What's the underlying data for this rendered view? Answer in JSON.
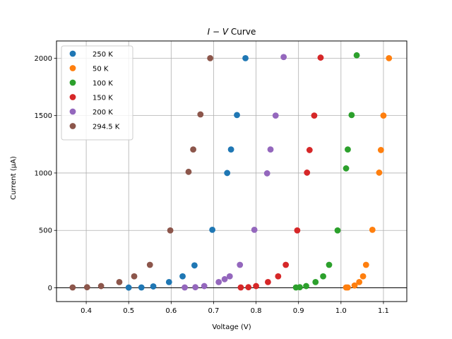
{
  "chart_data": {
    "type": "scatter",
    "title_prefix": "I",
    "title_sep": " − ",
    "title_mid": "V",
    "title_suffix": " Curve",
    "xlabel": "Voltage (V)",
    "ylabel": "Current (μA)",
    "xlim": [
      0.33,
      1.155
    ],
    "ylim": [
      -120,
      2150
    ],
    "xticks": [
      0.4,
      0.5,
      0.6,
      0.7,
      0.8,
      0.9,
      1.0,
      1.1
    ],
    "xtick_labels": [
      "0.4",
      "0.5",
      "0.6",
      "0.7",
      "0.8",
      "0.9",
      "1.0",
      "1.1"
    ],
    "yticks": [
      0,
      500,
      1000,
      1500,
      2000
    ],
    "ytick_labels": [
      "0",
      "500",
      "1000",
      "1500",
      "2000"
    ],
    "grid": true,
    "zero_line": true,
    "legend_position": "top-left",
    "series": [
      {
        "name": "250 K",
        "color": "#1f77b4",
        "x": [
          0.5,
          0.53,
          0.558,
          0.595,
          0.627,
          0.655,
          0.697,
          0.732,
          0.741,
          0.755,
          0.775
        ],
        "y": [
          2,
          3,
          12,
          50,
          100,
          195,
          505,
          1000,
          1205,
          1505,
          2000
        ]
      },
      {
        "name": "50 K",
        "color": "#ff7f0e",
        "x": [
          1.012,
          1.016,
          1.032,
          1.043,
          1.052,
          1.059,
          1.074,
          1.09,
          1.094,
          1.1,
          1.113
        ],
        "y": [
          3,
          3,
          20,
          50,
          100,
          200,
          505,
          1003,
          1200,
          1500,
          2000
        ]
      },
      {
        "name": "100 K",
        "color": "#2ca02c",
        "x": [
          0.894,
          0.903,
          0.918,
          0.94,
          0.958,
          0.972,
          0.992,
          1.012,
          1.016,
          1.025,
          1.037
        ],
        "y": [
          3,
          5,
          15,
          50,
          100,
          200,
          500,
          1040,
          1205,
          1505,
          2025
        ]
      },
      {
        "name": "150 K",
        "color": "#d62728",
        "x": [
          0.764,
          0.782,
          0.8,
          0.828,
          0.852,
          0.87,
          0.897,
          0.92,
          0.926,
          0.937,
          0.952
        ],
        "y": [
          3,
          5,
          15,
          50,
          100,
          200,
          500,
          1003,
          1200,
          1500,
          2005
        ]
      },
      {
        "name": "200 K",
        "color": "#9467bd",
        "x": [
          0.632,
          0.657,
          0.678,
          0.712,
          0.726,
          0.738,
          0.762,
          0.796,
          0.826,
          0.834,
          0.846,
          0.865
        ],
        "y": [
          3,
          5,
          15,
          50,
          75,
          100,
          200,
          505,
          997,
          1205,
          1500,
          2010
        ]
      },
      {
        "name": "294.5 K",
        "color": "#8c564b",
        "x": [
          0.368,
          0.402,
          0.435,
          0.478,
          0.513,
          0.55,
          0.598,
          0.641,
          0.652,
          0.669,
          0.692
        ],
        "y": [
          3,
          5,
          15,
          50,
          100,
          200,
          500,
          1010,
          1205,
          1510,
          2000
        ]
      }
    ]
  }
}
